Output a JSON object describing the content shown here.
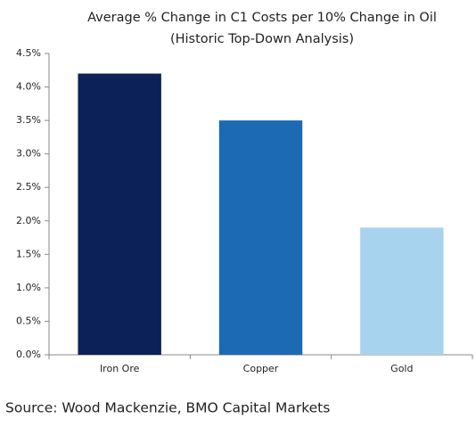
{
  "chart_data": {
    "type": "bar",
    "title": "Average % Change in C1 Costs per 10% Change in Oil",
    "subtitle": "(Historic Top-Down Analysis)",
    "categories": [
      "Iron Ore",
      "Copper",
      "Gold"
    ],
    "values": [
      4.2,
      3.5,
      1.9
    ],
    "colors": [
      "#0b2157",
      "#1c69b4",
      "#a8d3ee"
    ],
    "ylim": [
      0,
      4.5
    ],
    "yticks": [
      {
        "value": 0,
        "label": "0.0%"
      },
      {
        "value": 0.5,
        "label": "0.5%"
      },
      {
        "value": 1,
        "label": "1.0%"
      },
      {
        "value": 1.5,
        "label": "1.5%"
      },
      {
        "value": 2,
        "label": "2.0%"
      },
      {
        "value": 2.5,
        "label": "2.5%"
      },
      {
        "value": 3,
        "label": "3.0%"
      },
      {
        "value": 3.5,
        "label": "3.5%"
      },
      {
        "value": 4,
        "label": "4.0%"
      },
      {
        "value": 4.5,
        "label": "4.5%"
      }
    ],
    "grid": false,
    "source": "Source: Wood Mackenzie, BMO Capital Markets"
  }
}
